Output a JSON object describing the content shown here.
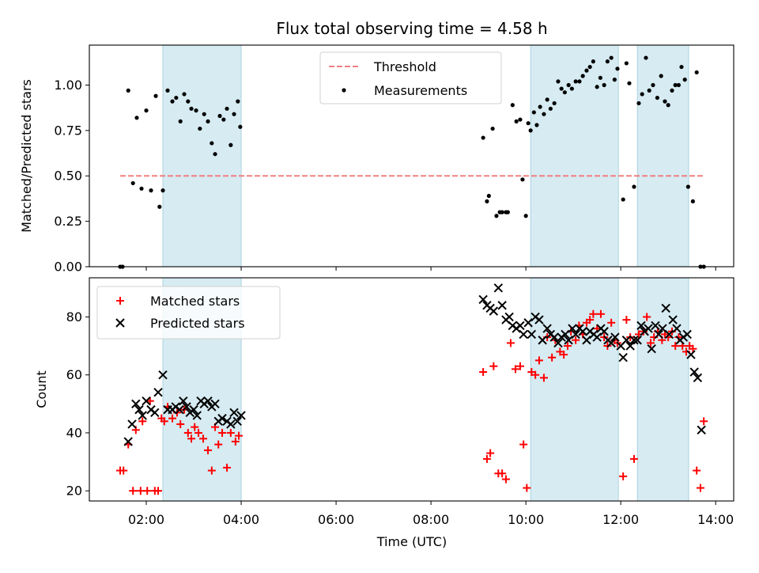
{
  "chart_data": [
    {
      "type": "scatter",
      "title": "Flux total observing time = 4.58 h",
      "xlabel": "",
      "ylabel": "Matched/Predicted stars",
      "ylim": [
        0,
        1.22
      ],
      "yticks": [
        "0.00",
        "0.25",
        "0.50",
        "0.75",
        "1.00"
      ],
      "ytick_values": [
        0,
        0.25,
        0.5,
        0.75,
        1.0
      ],
      "x_axis": "time of day (hours UTC)",
      "xlim": [
        0.8,
        14.38
      ],
      "legend_position": "top-center",
      "shaded_intervals": [
        [
          2.35,
          4.0
        ],
        [
          10.1,
          11.95
        ],
        [
          12.35,
          13.43
        ]
      ],
      "threshold": {
        "name": "Threshold",
        "value": 0.5,
        "x_range": [
          1.45,
          13.75
        ],
        "color": "#f08080",
        "style": "dashed"
      },
      "series": [
        {
          "name": "Measurements",
          "marker": "dot",
          "color": "#000000",
          "x": [
            1.45,
            1.5,
            1.62,
            1.72,
            1.8,
            1.9,
            2.0,
            2.1,
            2.2,
            2.28,
            2.35,
            2.45,
            2.55,
            2.63,
            2.72,
            2.8,
            2.88,
            2.95,
            3.05,
            3.13,
            3.22,
            3.3,
            3.38,
            3.45,
            3.55,
            3.63,
            3.7,
            3.78,
            3.85,
            3.93,
            3.98,
            9.1,
            9.18,
            9.22,
            9.3,
            9.38,
            9.45,
            9.5,
            9.58,
            9.62,
            9.72,
            9.8,
            9.88,
            9.93,
            10.0,
            10.05,
            10.1,
            10.17,
            10.23,
            10.3,
            10.38,
            10.45,
            10.52,
            10.6,
            10.68,
            10.75,
            10.82,
            10.9,
            10.97,
            11.05,
            11.13,
            11.2,
            11.28,
            11.35,
            11.42,
            11.5,
            11.57,
            11.65,
            11.72,
            11.8,
            11.87,
            11.93,
            12.05,
            12.12,
            12.18,
            12.28,
            12.38,
            12.45,
            12.53,
            12.6,
            12.68,
            12.77,
            12.85,
            12.93,
            13.0,
            13.08,
            13.15,
            13.22,
            13.28,
            13.35,
            13.42,
            13.52,
            13.6,
            13.68,
            13.75
          ],
          "y": [
            0.0,
            0.0,
            0.97,
            0.46,
            0.82,
            0.43,
            0.86,
            0.42,
            0.94,
            0.33,
            0.42,
            0.97,
            0.91,
            0.93,
            0.8,
            0.95,
            0.91,
            0.87,
            0.86,
            0.76,
            0.84,
            0.8,
            0.68,
            0.62,
            0.83,
            0.81,
            0.87,
            0.67,
            0.84,
            0.91,
            0.77,
            0.71,
            0.36,
            0.39,
            0.76,
            0.28,
            0.3,
            0.3,
            0.3,
            0.3,
            0.89,
            0.8,
            0.81,
            0.48,
            0.28,
            0.79,
            0.75,
            0.85,
            0.78,
            0.88,
            0.84,
            0.92,
            0.87,
            0.9,
            1.02,
            0.98,
            0.96,
            1.0,
            0.98,
            1.02,
            1.02,
            1.05,
            1.08,
            1.1,
            1.13,
            0.99,
            1.04,
            1.0,
            1.13,
            1.15,
            1.03,
            1.09,
            0.37,
            1.12,
            1.01,
            0.44,
            0.9,
            0.95,
            1.15,
            0.97,
            1.0,
            0.93,
            1.05,
            0.91,
            0.89,
            0.97,
            1.0,
            1.0,
            1.1,
            1.03,
            0.44,
            0.36,
            1.07,
            0.0,
            0.0
          ]
        }
      ]
    },
    {
      "type": "scatter",
      "title": "",
      "xlabel": "Time (UTC)",
      "ylabel": "Count",
      "ylim": [
        16.5,
        93.5
      ],
      "yticks": [
        "20",
        "40",
        "60",
        "80"
      ],
      "ytick_values": [
        20,
        40,
        60,
        80
      ],
      "xticks": [
        "02:00",
        "04:00",
        "06:00",
        "08:00",
        "10:00",
        "12:00",
        "14:00"
      ],
      "xtick_values": [
        2,
        4,
        6,
        8,
        10,
        12,
        14
      ],
      "xlim": [
        0.8,
        14.38
      ],
      "legend_position": "top-left",
      "shaded_intervals": [
        [
          2.35,
          4.0
        ],
        [
          10.1,
          11.95
        ],
        [
          12.35,
          13.43
        ]
      ],
      "series": [
        {
          "name": "Matched stars",
          "marker": "plus",
          "color": "#ff0000",
          "x": [
            1.45,
            1.52,
            1.62,
            1.72,
            1.78,
            1.88,
            1.92,
            2.02,
            2.08,
            2.18,
            2.25,
            2.32,
            2.38,
            2.45,
            2.55,
            2.65,
            2.72,
            2.8,
            2.88,
            2.95,
            3.02,
            3.1,
            3.2,
            3.3,
            3.38,
            3.45,
            3.52,
            3.6,
            3.7,
            3.78,
            3.88,
            3.95,
            9.1,
            9.18,
            9.25,
            9.32,
            9.42,
            9.5,
            9.58,
            9.68,
            9.78,
            9.88,
            9.95,
            10.02,
            10.12,
            10.2,
            10.28,
            10.38,
            10.45,
            10.55,
            10.62,
            10.72,
            10.8,
            10.88,
            10.95,
            11.05,
            11.12,
            11.2,
            11.28,
            11.35,
            11.42,
            11.5,
            11.58,
            11.65,
            11.72,
            11.8,
            11.87,
            11.93,
            12.05,
            12.12,
            12.2,
            12.28,
            12.38,
            12.48,
            12.55,
            12.63,
            12.7,
            12.78,
            12.87,
            12.93,
            13.0,
            13.08,
            13.15,
            13.22,
            13.3,
            13.38,
            13.45,
            13.52,
            13.6,
            13.68,
            13.75
          ],
          "y": [
            27,
            27,
            36,
            20,
            41,
            20,
            44,
            20,
            51,
            20,
            20,
            45,
            44,
            49,
            45,
            47,
            43,
            48,
            40,
            38,
            42,
            40,
            38,
            34,
            27,
            42,
            36,
            40,
            28,
            40,
            37,
            39,
            61,
            31,
            33,
            63,
            26,
            26,
            24,
            71,
            62,
            63,
            36,
            21,
            61,
            60,
            65,
            59,
            73,
            66,
            72,
            68,
            67,
            70,
            75,
            72,
            77,
            74,
            78,
            79,
            81,
            76,
            81,
            73,
            70,
            78,
            72,
            71,
            25,
            79,
            73,
            31,
            74,
            75,
            80,
            71,
            73,
            75,
            72,
            74,
            73,
            75,
            70,
            73,
            70,
            68,
            70,
            69,
            27,
            21,
            44
          ]
        },
        {
          "name": "Predicted stars",
          "marker": "x",
          "color": "#000000",
          "x": [
            1.62,
            1.7,
            1.78,
            1.85,
            1.92,
            2.0,
            2.1,
            2.18,
            2.25,
            2.35,
            2.45,
            2.55,
            2.62,
            2.7,
            2.78,
            2.85,
            2.92,
            3.0,
            3.07,
            3.15,
            3.22,
            3.3,
            3.38,
            3.45,
            3.52,
            3.6,
            3.7,
            3.78,
            3.85,
            3.92,
            4.0,
            9.1,
            9.18,
            9.25,
            9.32,
            9.42,
            9.5,
            9.58,
            9.65,
            9.72,
            9.8,
            9.88,
            9.95,
            10.05,
            10.12,
            10.2,
            10.28,
            10.35,
            10.45,
            10.52,
            10.6,
            10.68,
            10.75,
            10.83,
            10.9,
            10.98,
            11.05,
            11.13,
            11.2,
            11.28,
            11.35,
            11.43,
            11.5,
            11.58,
            11.65,
            11.73,
            11.8,
            11.88,
            12.0,
            12.05,
            12.12,
            12.2,
            12.28,
            12.35,
            12.43,
            12.5,
            12.58,
            12.65,
            12.73,
            12.8,
            12.88,
            12.95,
            13.02,
            13.1,
            13.18,
            13.25,
            13.32,
            13.4,
            13.48,
            13.55,
            13.62,
            13.7
          ],
          "y": [
            37,
            43,
            50,
            48,
            46,
            51,
            48,
            47,
            54,
            60,
            48,
            48,
            49,
            48,
            51,
            49,
            47,
            48,
            46,
            51,
            50,
            51,
            49,
            50,
            44,
            45,
            44,
            43,
            47,
            44,
            46,
            86,
            84,
            83,
            82,
            90,
            84,
            79,
            80,
            77,
            76,
            77,
            74,
            78,
            74,
            80,
            79,
            72,
            76,
            74,
            73,
            71,
            73,
            74,
            72,
            76,
            74,
            76,
            75,
            72,
            75,
            74,
            73,
            76,
            75,
            72,
            71,
            73,
            70,
            66,
            72,
            70,
            72,
            72,
            77,
            75,
            76,
            69,
            77,
            74,
            76,
            83,
            74,
            79,
            76,
            72,
            73,
            74,
            67,
            61,
            59,
            41
          ]
        }
      ]
    }
  ]
}
